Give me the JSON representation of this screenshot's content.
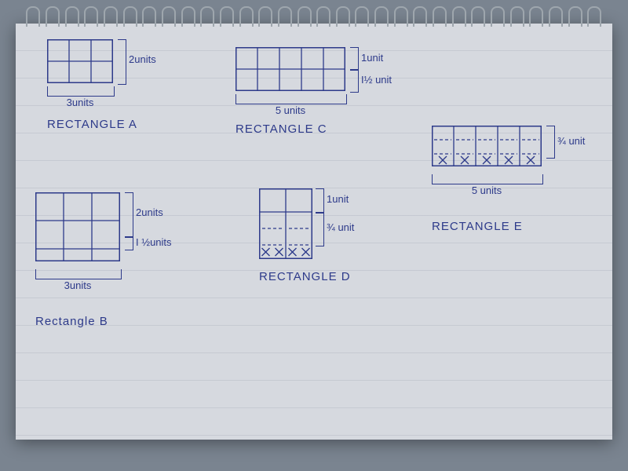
{
  "ink_color": "#2d3a8a",
  "paper_color": "#d6d9df",
  "bg_color": "#7a8490",
  "cell": 28,
  "rectangles": {
    "A": {
      "title": "RECTANGLE A",
      "width_units": 3,
      "height_units": 2,
      "width_label": "3units",
      "height_label": "2units",
      "extra_rows": []
    },
    "B": {
      "title": "Rectangle  B",
      "width_units": 3,
      "height_units": 2,
      "width_label": "3units",
      "height_label": "2units",
      "extra_label": "I ½units",
      "extra_rows": [
        0.5
      ]
    },
    "C": {
      "title": "RECTANGLE C",
      "width_units": 5,
      "height_units": 2,
      "width_label": "5 units",
      "height_labels": [
        "1unit",
        "I½ unit"
      ]
    },
    "D": {
      "title": "RECTANGLE D",
      "width_units": 2,
      "height_units": 1,
      "height_label": "1unit",
      "partial_label": "¾ unit",
      "partial_rows": 2
    },
    "E": {
      "title": "RECTANGLE  E",
      "width_units": 5,
      "width_label": "5 units",
      "height_label": "¾ unit",
      "partial_rows": 2
    }
  }
}
